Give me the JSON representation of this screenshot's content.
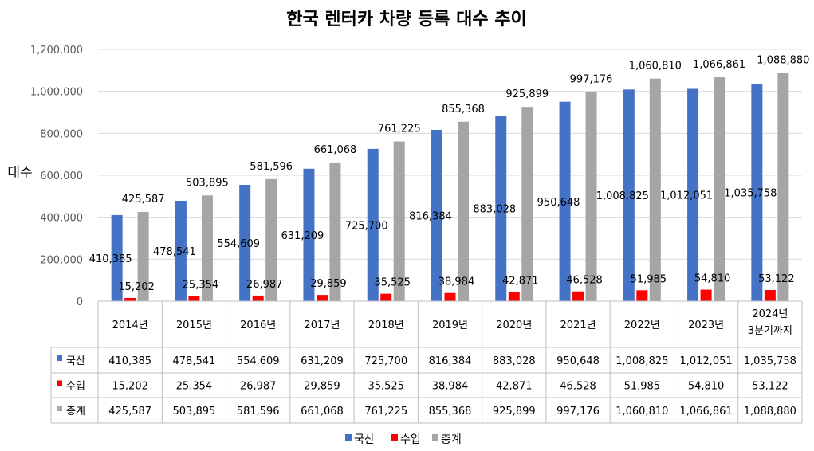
{
  "chart_data": {
    "type": "bar",
    "title": "한국 렌터카 차량 등록 대수 추이",
    "ylabel": "대수",
    "ylim": [
      0,
      1200000
    ],
    "yticks": [
      "0",
      "200,000",
      "400,000",
      "600,000",
      "800,000",
      "1,000,000",
      "1,200,000"
    ],
    "categories": [
      "2014년",
      "2015년",
      "2016년",
      "2017년",
      "2018년",
      "2019년",
      "2020년",
      "2021년",
      "2022년",
      "2023년",
      "2024년\n3분기까지"
    ],
    "series": [
      {
        "name": "국산",
        "color": "#4472C4",
        "values": [
          410385,
          478541,
          554609,
          631209,
          725700,
          816384,
          883028,
          950648,
          1008825,
          1012051,
          1035758
        ],
        "labels": [
          "410,385",
          "478,541",
          "554,609",
          "631,209",
          "725,700",
          "816,384",
          "883,028",
          "950,648",
          "1,008,825",
          "1,012,051",
          "1,035,758"
        ]
      },
      {
        "name": "수입",
        "color": "#FF0000",
        "values": [
          15202,
          25354,
          26987,
          29859,
          35525,
          38984,
          42871,
          46528,
          51985,
          54810,
          53122
        ],
        "labels": [
          "15,202",
          "25,354",
          "26,987",
          "29,859",
          "35,525",
          "38,984",
          "42,871",
          "46,528",
          "51,985",
          "54,810",
          "53,122"
        ]
      },
      {
        "name": "총계",
        "color": "#A5A5A5",
        "values": [
          425587,
          503895,
          581596,
          661068,
          761225,
          855368,
          925899,
          997176,
          1060810,
          1066861,
          1088880
        ],
        "labels": [
          "425,587",
          "503,895",
          "581,596",
          "661,068",
          "761,225",
          "855,368",
          "925,899",
          "997,176",
          "1,060,810",
          "1,066,861",
          "1,088,880"
        ]
      }
    ],
    "legend_position": "bottom",
    "grid": true,
    "data_table": true
  }
}
